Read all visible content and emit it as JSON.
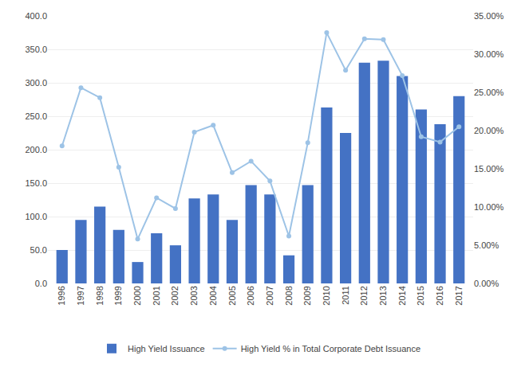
{
  "chart_data": {
    "type": "bar",
    "categories": [
      "1996",
      "1997",
      "1998",
      "1999",
      "2000",
      "2001",
      "2002",
      "2003",
      "2004",
      "2005",
      "2006",
      "2007",
      "2008",
      "2009",
      "2010",
      "2011",
      "2012",
      "2013",
      "2014",
      "2015",
      "2016",
      "2017"
    ],
    "series": [
      {
        "name": "High Yield Issuance",
        "type": "bar",
        "color": "#4472C4",
        "values": [
          50.0,
          95.0,
          115.0,
          80.0,
          32.0,
          75.0,
          57.0,
          127.0,
          133.0,
          95.0,
          147.0,
          133.0,
          42.0,
          147.0,
          263.0,
          225.0,
          330.0,
          333.0,
          310.0,
          260.0,
          238.0,
          280.0
        ]
      },
      {
        "name": "High Yield % in Total Corporate Debt Issuance",
        "type": "line",
        "axis": "y2",
        "color": "#9DC3E6",
        "marker": "circle",
        "line_style": "solid",
        "values": [
          0.18,
          0.256,
          0.243,
          0.152,
          0.058,
          0.112,
          0.098,
          0.198,
          0.207,
          0.145,
          0.16,
          0.134,
          0.062,
          0.184,
          0.328,
          0.279,
          0.32,
          0.319,
          0.272,
          0.192,
          0.185,
          0.205
        ]
      }
    ],
    "ylim": [
      0,
      400
    ],
    "yticks": [
      {
        "value": 0,
        "label": "0.0"
      },
      {
        "value": 50,
        "label": "50.0"
      },
      {
        "value": 100,
        "label": "100.0"
      },
      {
        "value": 150,
        "label": "150.0"
      },
      {
        "value": 200,
        "label": "200.0"
      },
      {
        "value": 250,
        "label": "250.0"
      },
      {
        "value": 300,
        "label": "300.0"
      },
      {
        "value": 350,
        "label": "350.0"
      },
      {
        "value": 400,
        "label": "400.0"
      }
    ],
    "y2lim": [
      0,
      0.35
    ],
    "y2ticks": [
      {
        "value": 0,
        "label": "0.00%"
      },
      {
        "value": 0.05,
        "label": "5.00%"
      },
      {
        "value": 0.1,
        "label": "10.00%"
      },
      {
        "value": 0.15,
        "label": "15.00%"
      },
      {
        "value": 0.2,
        "label": "20.00%"
      },
      {
        "value": 0.25,
        "label": "25.00%"
      },
      {
        "value": 0.3,
        "label": "30.00%"
      },
      {
        "value": 0.35,
        "label": "35.00%"
      }
    ],
    "grid": true,
    "legend": "bottom"
  }
}
